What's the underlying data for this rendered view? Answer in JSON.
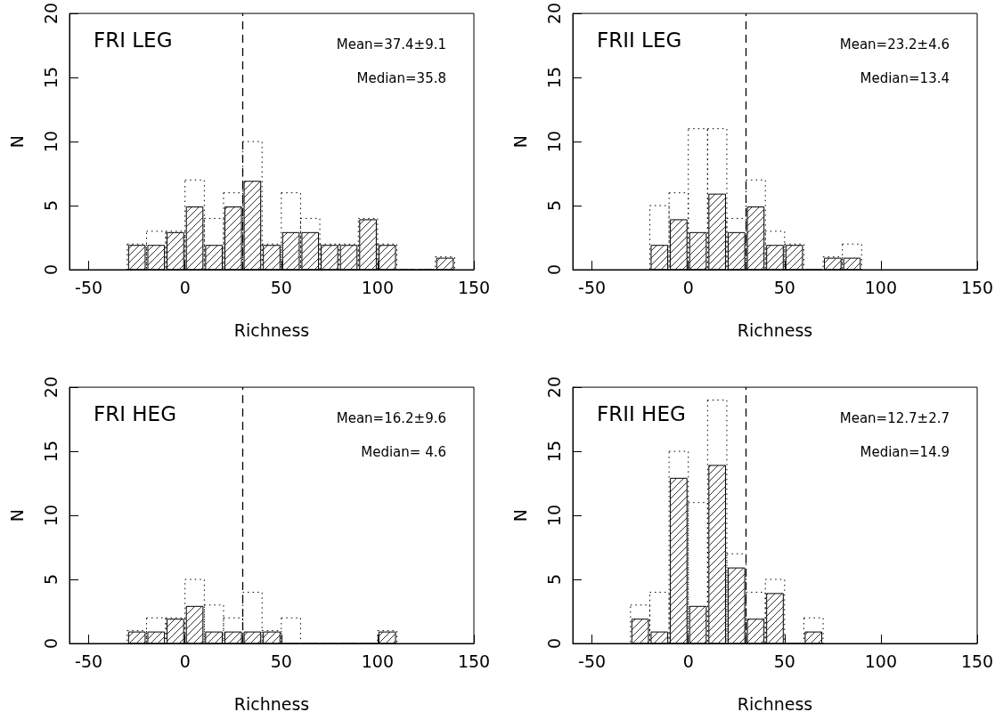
{
  "chart_data": [
    {
      "type": "histogram",
      "title": "FRI LEG",
      "xlabel": "Richness",
      "ylabel": "N",
      "bins": [
        -30,
        -20,
        -10,
        0,
        10,
        20,
        30,
        40,
        50,
        60,
        70,
        80,
        90,
        100,
        110,
        120,
        130,
        140
      ],
      "series": [
        {
          "color": "#000000",
          "line_style": "dotted",
          "values": [
            2,
            3,
            3,
            7,
            4,
            6,
            10,
            2,
            6,
            4,
            2,
            2,
            4,
            2,
            0,
            0,
            1
          ]
        },
        {
          "color": "#000000",
          "values": [
            2,
            2,
            3,
            5,
            2,
            5,
            7,
            2,
            3,
            3,
            2,
            2,
            4,
            2,
            0,
            0,
            1
          ]
        }
      ],
      "xlim": [
        -60,
        150
      ],
      "xticks": [
        -50,
        0,
        50,
        100,
        150
      ],
      "ylim": [
        0,
        20
      ],
      "yticks": [
        0,
        5,
        10,
        15,
        20
      ],
      "ref_lines": [
        {
          "axis": "x",
          "value": 30,
          "line_style": "dashed"
        }
      ],
      "annotations": [
        "Mean=37.4±9.1",
        "Median=35.8"
      ]
    },
    {
      "type": "histogram",
      "title": "FRII LEG",
      "xlabel": "Richness",
      "ylabel": "N",
      "bins": [
        -20,
        -10,
        0,
        10,
        20,
        30,
        40,
        50,
        60,
        70,
        80,
        90
      ],
      "series": [
        {
          "color": "#000000",
          "line_style": "dotted",
          "values": [
            5,
            6,
            11,
            11,
            4,
            7,
            3,
            2,
            0,
            1,
            2
          ]
        },
        {
          "color": "#000000",
          "values": [
            2,
            4,
            3,
            6,
            3,
            5,
            2,
            2,
            0,
            1,
            1
          ]
        }
      ],
      "xlim": [
        -60,
        150
      ],
      "xticks": [
        -50,
        0,
        50,
        100,
        150
      ],
      "ylim": [
        0,
        20
      ],
      "yticks": [
        0,
        5,
        10,
        15,
        20
      ],
      "ref_lines": [
        {
          "axis": "x",
          "value": 30,
          "line_style": "dashed"
        }
      ],
      "annotations": [
        "Mean=23.2±4.6",
        "Median=13.4"
      ]
    },
    {
      "type": "histogram",
      "title": "FRI HEG",
      "xlabel": "Richness",
      "ylabel": "N",
      "bins": [
        -30,
        -20,
        -10,
        0,
        10,
        20,
        30,
        40,
        50,
        60,
        70,
        80,
        90,
        100,
        110
      ],
      "series": [
        {
          "color": "#000000",
          "line_style": "dotted",
          "values": [
            1,
            2,
            2,
            5,
            3,
            2,
            4,
            1,
            2,
            0,
            0,
            0,
            0,
            1
          ]
        },
        {
          "color": "#000000",
          "values": [
            1,
            1,
            2,
            3,
            1,
            1,
            1,
            1,
            0,
            0,
            0,
            0,
            0,
            1
          ]
        }
      ],
      "xlim": [
        -60,
        150
      ],
      "xticks": [
        -50,
        0,
        50,
        100,
        150
      ],
      "ylim": [
        0,
        20
      ],
      "yticks": [
        0,
        5,
        10,
        15,
        20
      ],
      "ref_lines": [
        {
          "axis": "x",
          "value": 30,
          "line_style": "dashed"
        }
      ],
      "annotations": [
        "Mean=16.2±9.6",
        "Median= 4.6"
      ]
    },
    {
      "type": "histogram",
      "title": "FRII HEG",
      "xlabel": "Richness",
      "ylabel": "N",
      "bins": [
        -30,
        -20,
        -10,
        0,
        10,
        20,
        30,
        40,
        50,
        60,
        70
      ],
      "series": [
        {
          "color": "#000000",
          "line_style": "dotted",
          "values": [
            3,
            4,
            15,
            11,
            19,
            7,
            4,
            5,
            0,
            2
          ]
        },
        {
          "color": "#000000",
          "values": [
            2,
            1,
            13,
            3,
            14,
            6,
            2,
            4,
            0,
            1
          ]
        }
      ],
      "xlim": [
        -60,
        150
      ],
      "xticks": [
        -50,
        0,
        50,
        100,
        150
      ],
      "ylim": [
        0,
        20
      ],
      "yticks": [
        0,
        5,
        10,
        15,
        20
      ],
      "ref_lines": [
        {
          "axis": "x",
          "value": 30,
          "line_style": "dashed"
        }
      ],
      "annotations": [
        "Mean=12.7±2.7",
        "Median=14.9"
      ]
    }
  ]
}
